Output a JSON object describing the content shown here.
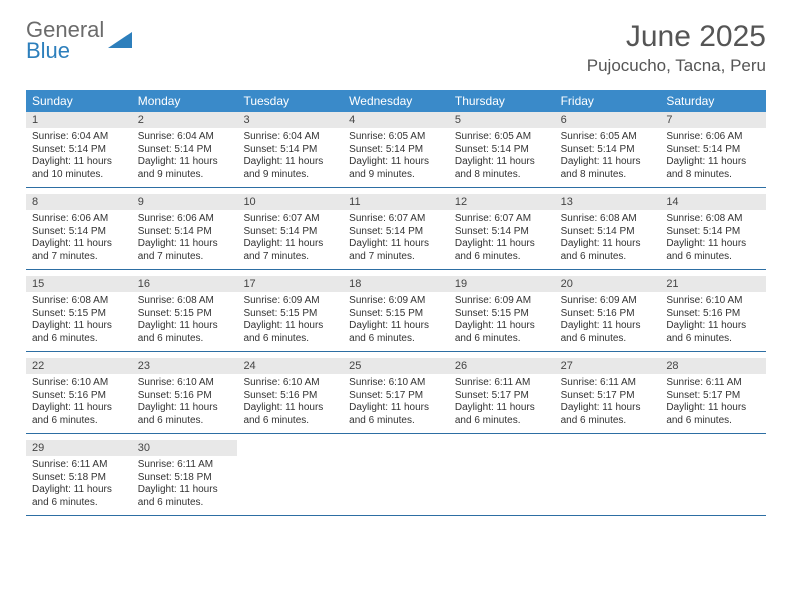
{
  "logo": {
    "line1": "General",
    "line2": "Blue"
  },
  "title": "June 2025",
  "location": "Pujocucho, Tacna, Peru",
  "colors": {
    "header_bg": "#3a8ac9",
    "header_text": "#ffffff",
    "daynum_bg": "#e8e8e8",
    "week_border": "#2d6ea3",
    "logo_grey": "#6b6b6b",
    "logo_blue": "#2d7fbc",
    "title_color": "#555555"
  },
  "weekdays": [
    "Sunday",
    "Monday",
    "Tuesday",
    "Wednesday",
    "Thursday",
    "Friday",
    "Saturday"
  ],
  "weeks": [
    [
      {
        "n": "1",
        "sunrise": "6:04 AM",
        "sunset": "5:14 PM",
        "daylight": "11 hours and 10 minutes."
      },
      {
        "n": "2",
        "sunrise": "6:04 AM",
        "sunset": "5:14 PM",
        "daylight": "11 hours and 9 minutes."
      },
      {
        "n": "3",
        "sunrise": "6:04 AM",
        "sunset": "5:14 PM",
        "daylight": "11 hours and 9 minutes."
      },
      {
        "n": "4",
        "sunrise": "6:05 AM",
        "sunset": "5:14 PM",
        "daylight": "11 hours and 9 minutes."
      },
      {
        "n": "5",
        "sunrise": "6:05 AM",
        "sunset": "5:14 PM",
        "daylight": "11 hours and 8 minutes."
      },
      {
        "n": "6",
        "sunrise": "6:05 AM",
        "sunset": "5:14 PM",
        "daylight": "11 hours and 8 minutes."
      },
      {
        "n": "7",
        "sunrise": "6:06 AM",
        "sunset": "5:14 PM",
        "daylight": "11 hours and 8 minutes."
      }
    ],
    [
      {
        "n": "8",
        "sunrise": "6:06 AM",
        "sunset": "5:14 PM",
        "daylight": "11 hours and 7 minutes."
      },
      {
        "n": "9",
        "sunrise": "6:06 AM",
        "sunset": "5:14 PM",
        "daylight": "11 hours and 7 minutes."
      },
      {
        "n": "10",
        "sunrise": "6:07 AM",
        "sunset": "5:14 PM",
        "daylight": "11 hours and 7 minutes."
      },
      {
        "n": "11",
        "sunrise": "6:07 AM",
        "sunset": "5:14 PM",
        "daylight": "11 hours and 7 minutes."
      },
      {
        "n": "12",
        "sunrise": "6:07 AM",
        "sunset": "5:14 PM",
        "daylight": "11 hours and 6 minutes."
      },
      {
        "n": "13",
        "sunrise": "6:08 AM",
        "sunset": "5:14 PM",
        "daylight": "11 hours and 6 minutes."
      },
      {
        "n": "14",
        "sunrise": "6:08 AM",
        "sunset": "5:14 PM",
        "daylight": "11 hours and 6 minutes."
      }
    ],
    [
      {
        "n": "15",
        "sunrise": "6:08 AM",
        "sunset": "5:15 PM",
        "daylight": "11 hours and 6 minutes."
      },
      {
        "n": "16",
        "sunrise": "6:08 AM",
        "sunset": "5:15 PM",
        "daylight": "11 hours and 6 minutes."
      },
      {
        "n": "17",
        "sunrise": "6:09 AM",
        "sunset": "5:15 PM",
        "daylight": "11 hours and 6 minutes."
      },
      {
        "n": "18",
        "sunrise": "6:09 AM",
        "sunset": "5:15 PM",
        "daylight": "11 hours and 6 minutes."
      },
      {
        "n": "19",
        "sunrise": "6:09 AM",
        "sunset": "5:15 PM",
        "daylight": "11 hours and 6 minutes."
      },
      {
        "n": "20",
        "sunrise": "6:09 AM",
        "sunset": "5:16 PM",
        "daylight": "11 hours and 6 minutes."
      },
      {
        "n": "21",
        "sunrise": "6:10 AM",
        "sunset": "5:16 PM",
        "daylight": "11 hours and 6 minutes."
      }
    ],
    [
      {
        "n": "22",
        "sunrise": "6:10 AM",
        "sunset": "5:16 PM",
        "daylight": "11 hours and 6 minutes."
      },
      {
        "n": "23",
        "sunrise": "6:10 AM",
        "sunset": "5:16 PM",
        "daylight": "11 hours and 6 minutes."
      },
      {
        "n": "24",
        "sunrise": "6:10 AM",
        "sunset": "5:16 PM",
        "daylight": "11 hours and 6 minutes."
      },
      {
        "n": "25",
        "sunrise": "6:10 AM",
        "sunset": "5:17 PM",
        "daylight": "11 hours and 6 minutes."
      },
      {
        "n": "26",
        "sunrise": "6:11 AM",
        "sunset": "5:17 PM",
        "daylight": "11 hours and 6 minutes."
      },
      {
        "n": "27",
        "sunrise": "6:11 AM",
        "sunset": "5:17 PM",
        "daylight": "11 hours and 6 minutes."
      },
      {
        "n": "28",
        "sunrise": "6:11 AM",
        "sunset": "5:17 PM",
        "daylight": "11 hours and 6 minutes."
      }
    ],
    [
      {
        "n": "29",
        "sunrise": "6:11 AM",
        "sunset": "5:18 PM",
        "daylight": "11 hours and 6 minutes."
      },
      {
        "n": "30",
        "sunrise": "6:11 AM",
        "sunset": "5:18 PM",
        "daylight": "11 hours and 6 minutes."
      },
      null,
      null,
      null,
      null,
      null
    ]
  ]
}
